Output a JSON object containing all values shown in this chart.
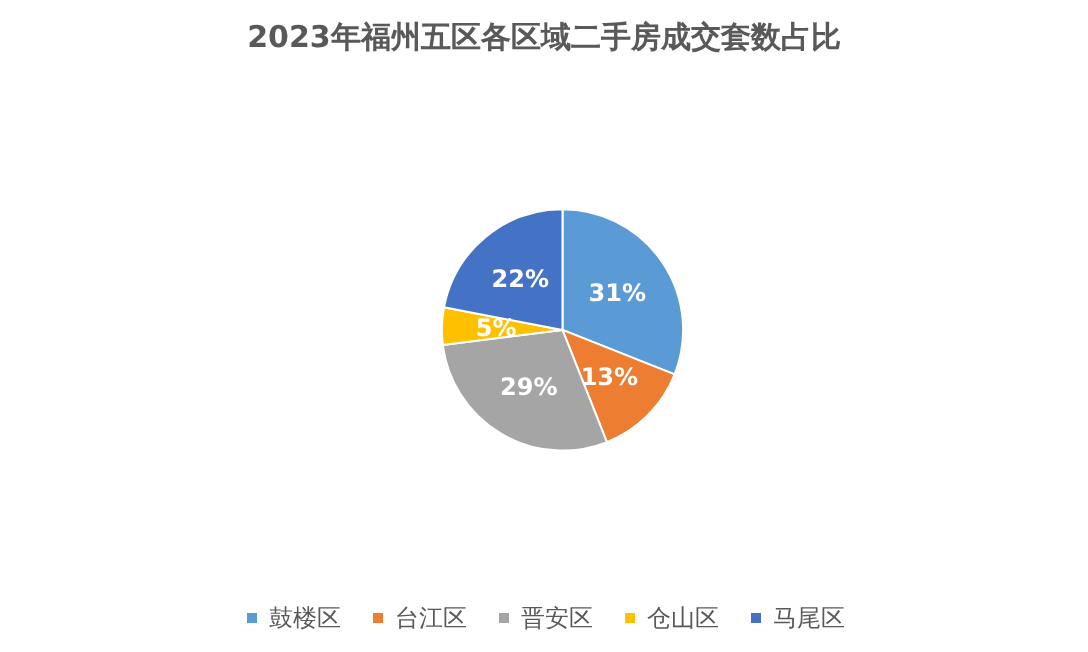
{
  "chart_data": {
    "type": "pie",
    "title": "2023年福州五区各区域二手房成交套数占比",
    "categories": [
      "鼓楼区",
      "台江区",
      "晋安区",
      "仓山区",
      "马尾区"
    ],
    "values": [
      31,
      13,
      29,
      5,
      22
    ],
    "value_labels": [
      "31%",
      "13%",
      "29%",
      "5%",
      "22%"
    ],
    "colors": [
      "#5b9bd5",
      "#ed7d31",
      "#a5a5a5",
      "#ffc000",
      "#4472c4"
    ],
    "legend": "bottom"
  }
}
